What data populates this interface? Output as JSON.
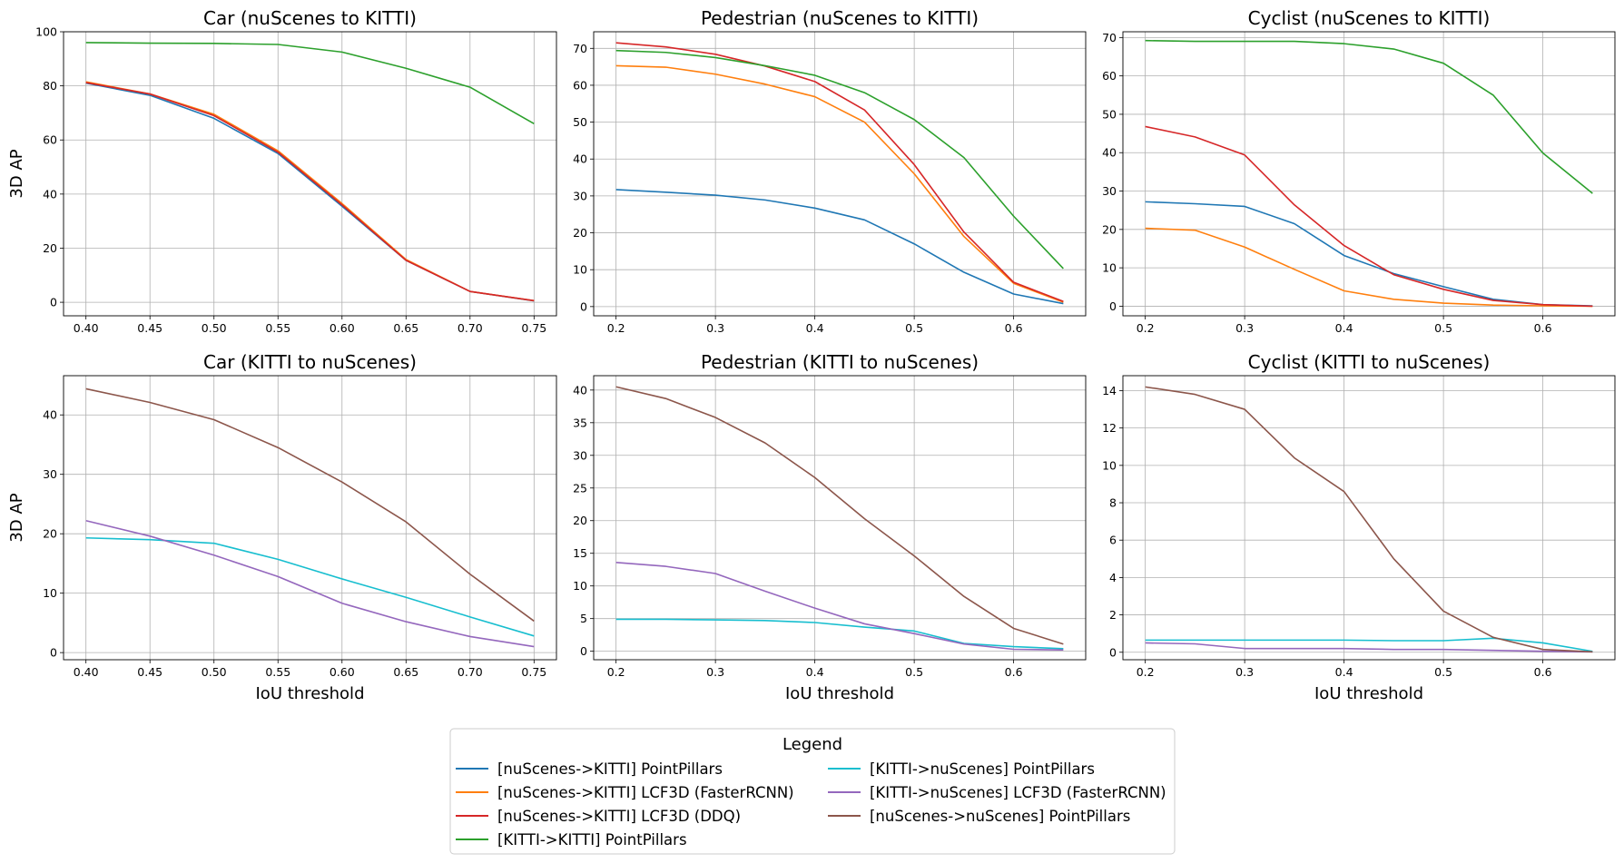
{
  "colors": {
    "nk_pp": "#1f77b4",
    "nk_lcf_frcnn": "#ff7f0e",
    "nk_lcf_ddq": "#d62728",
    "kk_pp": "#2ca02c",
    "kn_pp": "#17becf",
    "kn_lcf_frcnn": "#9467bd",
    "nn_pp": "#8c564b"
  },
  "legend": {
    "title": "Legend",
    "placement": "bottom-center",
    "entries": [
      {
        "key": "nk_pp",
        "label": "[nuScenes->KITTI] PointPillars"
      },
      {
        "key": "nk_lcf_frcnn",
        "label": "[nuScenes->KITTI] LCF3D (FasterRCNN)"
      },
      {
        "key": "nk_lcf_ddq",
        "label": "[nuScenes->KITTI] LCF3D (DDQ)"
      },
      {
        "key": "kk_pp",
        "label": "[KITTI->KITTI] PointPillars"
      },
      {
        "key": "kn_pp",
        "label": "[KITTI->nuScenes] PointPillars"
      },
      {
        "key": "kn_lcf_frcnn",
        "label": "[KITTI->nuScenes] LCF3D (FasterRCNN)"
      },
      {
        "key": "nn_pp",
        "label": "[nuScenes->nuScenes] PointPillars"
      }
    ]
  },
  "chart_data": [
    {
      "type": "line",
      "title": "Car (nuScenes to KITTI)",
      "xlabel": "",
      "ylabel": "3D AP",
      "grid": true,
      "xlim": [
        0.3825,
        0.7675
      ],
      "ylim": [
        -5,
        100
      ],
      "xticks": [
        0.4,
        0.45,
        0.5,
        0.55,
        0.6,
        0.65,
        0.7,
        0.75
      ],
      "xtick_labels": [
        "0.40",
        "0.45",
        "0.50",
        "0.55",
        "0.60",
        "0.65",
        "0.70",
        "0.75"
      ],
      "yticks": [
        0,
        20,
        40,
        60,
        80,
        100
      ],
      "ytick_labels": [
        "0",
        "20",
        "40",
        "60",
        "80",
        "100"
      ],
      "x": [
        0.4,
        0.45,
        0.5,
        0.55,
        0.6,
        0.65,
        0.7,
        0.75
      ],
      "series": [
        {
          "key": "nk_pp",
          "name": "[nuScenes->KITTI] PointPillars",
          "values": [
            81.0,
            76.5,
            68.0,
            55.0,
            35.5,
            15.5,
            4.0,
            0.5
          ]
        },
        {
          "key": "nk_lcf_frcnn",
          "name": "[nuScenes->KITTI] LCF3D (FasterRCNN)",
          "values": [
            81.5,
            77.0,
            69.5,
            56.0,
            36.5,
            15.8,
            4.0,
            0.6
          ]
        },
        {
          "key": "nk_lcf_ddq",
          "name": "[nuScenes->KITTI] LCF3D (DDQ)",
          "values": [
            81.2,
            77.0,
            69.0,
            55.5,
            36.0,
            15.5,
            4.0,
            0.6
          ]
        },
        {
          "key": "kk_pp",
          "name": "[KITTI->KITTI] PointPillars",
          "values": [
            96.0,
            95.8,
            95.7,
            95.3,
            92.5,
            86.5,
            79.5,
            66.0
          ]
        }
      ]
    },
    {
      "type": "line",
      "title": "Pedestrian (nuScenes to KITTI)",
      "xlabel": "",
      "ylabel": "",
      "grid": true,
      "xlim": [
        0.1775,
        0.6725
      ],
      "ylim": [
        -2.5,
        74.5
      ],
      "xticks": [
        0.2,
        0.3,
        0.4,
        0.5,
        0.6
      ],
      "xtick_labels": [
        "0.2",
        "0.3",
        "0.4",
        "0.5",
        "0.6"
      ],
      "yticks": [
        0,
        10,
        20,
        30,
        40,
        50,
        60,
        70
      ],
      "ytick_labels": [
        "0",
        "10",
        "20",
        "30",
        "40",
        "50",
        "60",
        "70"
      ],
      "x": [
        0.2,
        0.25,
        0.3,
        0.35,
        0.4,
        0.45,
        0.5,
        0.55,
        0.6,
        0.65
      ],
      "series": [
        {
          "key": "nk_pp",
          "name": "[nuScenes->KITTI] PointPillars",
          "values": [
            31.7,
            31.0,
            30.2,
            28.9,
            26.7,
            23.5,
            17.0,
            9.3,
            3.4,
            0.8
          ]
        },
        {
          "key": "nk_lcf_frcnn",
          "name": "[nuScenes->KITTI] LCF3D (FasterRCNN)",
          "values": [
            65.3,
            64.9,
            63.0,
            60.3,
            56.9,
            50.0,
            36.0,
            19.0,
            6.3,
            1.2
          ]
        },
        {
          "key": "nk_lcf_ddq",
          "name": "[nuScenes->KITTI] LCF3D (DDQ)",
          "values": [
            71.5,
            70.4,
            68.4,
            65.2,
            61.0,
            53.3,
            38.5,
            20.2,
            6.6,
            1.4
          ]
        },
        {
          "key": "kk_pp",
          "name": "[KITTI->KITTI] PointPillars",
          "values": [
            69.4,
            68.9,
            67.5,
            65.3,
            62.7,
            58.0,
            50.7,
            40.4,
            24.5,
            10.3
          ]
        }
      ]
    },
    {
      "type": "line",
      "title": "Cyclist (nuScenes to KITTI)",
      "xlabel": "",
      "ylabel": "",
      "grid": true,
      "xlim": [
        0.1775,
        0.6725
      ],
      "ylim": [
        -2.5,
        71.5
      ],
      "xticks": [
        0.2,
        0.3,
        0.4,
        0.5,
        0.6
      ],
      "xtick_labels": [
        "0.2",
        "0.3",
        "0.4",
        "0.5",
        "0.6"
      ],
      "yticks": [
        0,
        10,
        20,
        30,
        40,
        50,
        60,
        70
      ],
      "ytick_labels": [
        "0",
        "10",
        "20",
        "30",
        "40",
        "50",
        "60",
        "70"
      ],
      "x": [
        0.2,
        0.25,
        0.3,
        0.35,
        0.4,
        0.45,
        0.5,
        0.55,
        0.6,
        0.65
      ],
      "series": [
        {
          "key": "nk_pp",
          "name": "[nuScenes->KITTI] PointPillars",
          "values": [
            27.2,
            26.7,
            26.0,
            21.5,
            13.2,
            8.5,
            5.1,
            1.8,
            0.4,
            0.1
          ]
        },
        {
          "key": "nk_lcf_frcnn",
          "name": "[nuScenes->KITTI] LCF3D (FasterRCNN)",
          "values": [
            20.3,
            19.8,
            15.4,
            9.6,
            4.0,
            1.8,
            0.8,
            0.3,
            0.1,
            0.0
          ]
        },
        {
          "key": "nk_lcf_ddq",
          "name": "[nuScenes->KITTI] LCF3D (DDQ)",
          "values": [
            46.8,
            44.1,
            39.4,
            26.4,
            15.8,
            8.2,
            4.4,
            1.5,
            0.4,
            0.0
          ]
        },
        {
          "key": "kk_pp",
          "name": "[KITTI->KITTI] PointPillars",
          "values": [
            69.2,
            69.0,
            69.0,
            69.0,
            68.4,
            67.0,
            63.3,
            55.0,
            39.9,
            29.4
          ]
        }
      ]
    },
    {
      "type": "line",
      "title": "Car (KITTI to nuScenes)",
      "xlabel": "IoU threshold",
      "ylabel": "3D AP",
      "grid": true,
      "xlim": [
        0.3825,
        0.7675
      ],
      "ylim": [
        -1.2,
        46.6
      ],
      "xticks": [
        0.4,
        0.45,
        0.5,
        0.55,
        0.6,
        0.65,
        0.7,
        0.75
      ],
      "xtick_labels": [
        "0.40",
        "0.45",
        "0.50",
        "0.55",
        "0.60",
        "0.65",
        "0.70",
        "0.75"
      ],
      "yticks": [
        0,
        10,
        20,
        30,
        40
      ],
      "ytick_labels": [
        "0",
        "10",
        "20",
        "30",
        "40"
      ],
      "x": [
        0.4,
        0.45,
        0.5,
        0.55,
        0.6,
        0.65,
        0.7,
        0.75
      ],
      "series": [
        {
          "key": "kn_pp",
          "name": "[KITTI->nuScenes] PointPillars",
          "values": [
            19.3,
            19.0,
            18.4,
            15.7,
            12.4,
            9.3,
            6.0,
            2.8
          ]
        },
        {
          "key": "kn_lcf_frcnn",
          "name": "[KITTI->nuScenes] LCF3D (FasterRCNN)",
          "values": [
            22.2,
            19.6,
            16.4,
            12.8,
            8.3,
            5.2,
            2.7,
            1.0
          ]
        },
        {
          "key": "nn_pp",
          "name": "[nuScenes->nuScenes] PointPillars",
          "values": [
            44.4,
            42.1,
            39.2,
            34.5,
            28.7,
            22.0,
            13.2,
            5.3
          ]
        }
      ]
    },
    {
      "type": "line",
      "title": "Pedestrian (KITTI to nuScenes)",
      "xlabel": "IoU threshold",
      "ylabel": "",
      "grid": true,
      "xlim": [
        0.1775,
        0.6725
      ],
      "ylim": [
        -1.3,
        42.2
      ],
      "xticks": [
        0.2,
        0.3,
        0.4,
        0.5,
        0.6
      ],
      "xtick_labels": [
        "0.2",
        "0.3",
        "0.4",
        "0.5",
        "0.6"
      ],
      "yticks": [
        0,
        5,
        10,
        15,
        20,
        25,
        30,
        35,
        40
      ],
      "ytick_labels": [
        "0",
        "5",
        "10",
        "15",
        "20",
        "25",
        "30",
        "35",
        "40"
      ],
      "x": [
        0.2,
        0.25,
        0.3,
        0.35,
        0.4,
        0.45,
        0.5,
        0.55,
        0.6,
        0.65
      ],
      "series": [
        {
          "key": "kn_pp",
          "name": "[KITTI->nuScenes] PointPillars",
          "values": [
            4.9,
            4.9,
            4.8,
            4.7,
            4.4,
            3.7,
            3.1,
            1.2,
            0.7,
            0.4
          ]
        },
        {
          "key": "kn_lcf_frcnn",
          "name": "[KITTI->nuScenes] LCF3D (FasterRCNN)",
          "values": [
            13.6,
            13.0,
            11.9,
            9.2,
            6.6,
            4.2,
            2.7,
            1.1,
            0.3,
            0.2
          ]
        },
        {
          "key": "nn_pp",
          "name": "[nuScenes->nuScenes] PointPillars",
          "values": [
            40.5,
            38.7,
            35.8,
            31.9,
            26.6,
            20.3,
            14.6,
            8.4,
            3.5,
            1.1
          ]
        }
      ]
    },
    {
      "type": "line",
      "title": "Cyclist (KITTI to nuScenes)",
      "xlabel": "IoU threshold",
      "ylabel": "",
      "grid": true,
      "xlim": [
        0.1775,
        0.6725
      ],
      "ylim": [
        -0.4,
        14.8
      ],
      "xticks": [
        0.2,
        0.3,
        0.4,
        0.5,
        0.6
      ],
      "xtick_labels": [
        "0.2",
        "0.3",
        "0.4",
        "0.5",
        "0.6"
      ],
      "yticks": [
        0,
        2,
        4,
        6,
        8,
        10,
        12,
        14
      ],
      "ytick_labels": [
        "0",
        "2",
        "4",
        "6",
        "8",
        "10",
        "12",
        "14"
      ],
      "x": [
        0.2,
        0.25,
        0.3,
        0.35,
        0.4,
        0.45,
        0.5,
        0.55,
        0.6,
        0.65
      ],
      "series": [
        {
          "key": "kn_pp",
          "name": "[KITTI->nuScenes] PointPillars",
          "values": [
            0.65,
            0.65,
            0.65,
            0.65,
            0.65,
            0.62,
            0.62,
            0.75,
            0.5,
            0.05
          ]
        },
        {
          "key": "kn_lcf_frcnn",
          "name": "[KITTI->nuScenes] LCF3D (FasterRCNN)",
          "values": [
            0.5,
            0.45,
            0.2,
            0.2,
            0.2,
            0.15,
            0.15,
            0.1,
            0.05,
            0.02
          ]
        },
        {
          "key": "nn_pp",
          "name": "[nuScenes->nuScenes] PointPillars",
          "values": [
            14.2,
            13.8,
            13.0,
            10.4,
            8.6,
            5.0,
            2.2,
            0.8,
            0.15,
            0.02
          ]
        }
      ]
    }
  ]
}
